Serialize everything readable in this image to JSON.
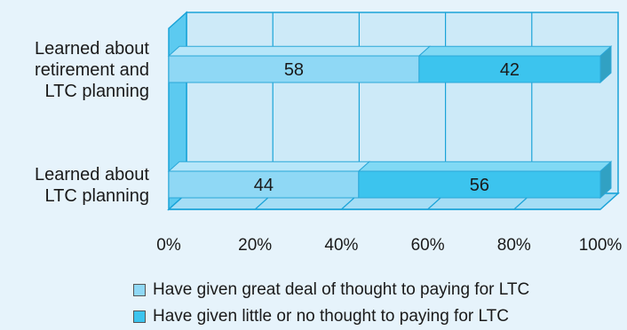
{
  "chart_data": {
    "type": "bar",
    "orientation": "horizontal",
    "stacked": true,
    "style": "3d",
    "categories": [
      "Learned about retirement and LTC planning",
      "Learned about LTC planning"
    ],
    "category_lines": [
      [
        "Learned about",
        "retirement and",
        "LTC planning"
      ],
      [
        "Learned about",
        "LTC planning"
      ]
    ],
    "series": [
      {
        "name": "Have given great deal of thought to paying for LTC",
        "values": [
          58,
          44
        ],
        "color": "#8fd8f5"
      },
      {
        "name": "Have given little or no thought to paying for LTC",
        "values": [
          42,
          56
        ],
        "color": "#3cc4ee"
      }
    ],
    "xlim": [
      0,
      100
    ],
    "x_ticks": [
      "0%",
      "20%",
      "40%",
      "60%",
      "80%",
      "100%"
    ],
    "grid": true,
    "legend_position": "bottom",
    "colors": {
      "background": "#e6f3fb",
      "plot_back": "#cdeaf8",
      "plot_floor": "#a5ddf5",
      "plot_side": "#5ccaf0",
      "grid": "#1aa3d8"
    }
  }
}
